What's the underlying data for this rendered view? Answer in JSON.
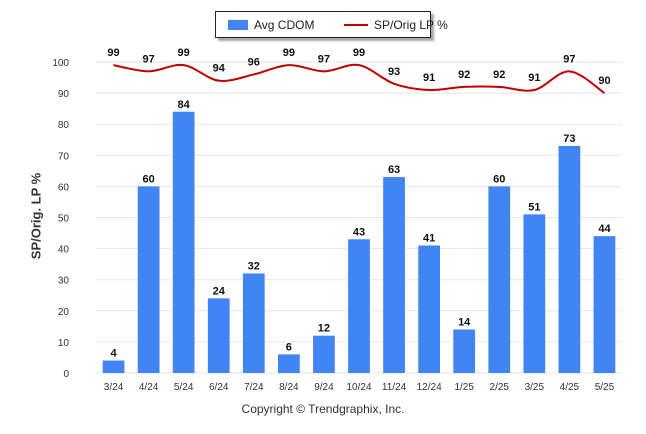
{
  "legend": {
    "bar_label": "Avg CDOM",
    "line_label": "SP/Orig LP %"
  },
  "copyright": "Copyright © Trendgraphix, Inc.",
  "colors": {
    "bar": "#4184f3",
    "line": "#c00000",
    "grid": "#e6e6e6"
  },
  "chart_data": {
    "type": "bar",
    "title": "",
    "ylabel": "SP/Orig. LP %",
    "xlabel": "",
    "ylim": [
      0,
      100
    ],
    "yticks": [
      0,
      10,
      20,
      30,
      40,
      50,
      60,
      70,
      80,
      90,
      100
    ],
    "grid": true,
    "legend_position": "top-center",
    "categories": [
      "3/24",
      "4/24",
      "5/24",
      "6/24",
      "7/24",
      "8/24",
      "9/24",
      "10/24",
      "11/24",
      "12/24",
      "1/25",
      "2/25",
      "3/25",
      "4/25",
      "5/25"
    ],
    "series": [
      {
        "name": "Avg CDOM",
        "type": "bar",
        "values": [
          4,
          60,
          84,
          24,
          32,
          6,
          12,
          43,
          63,
          41,
          14,
          60,
          51,
          73,
          44
        ]
      },
      {
        "name": "SP/Orig LP %",
        "type": "line",
        "values": [
          99,
          97,
          99,
          94,
          96,
          99,
          97,
          99,
          93,
          91,
          92,
          92,
          91,
          97,
          90
        ]
      }
    ]
  }
}
